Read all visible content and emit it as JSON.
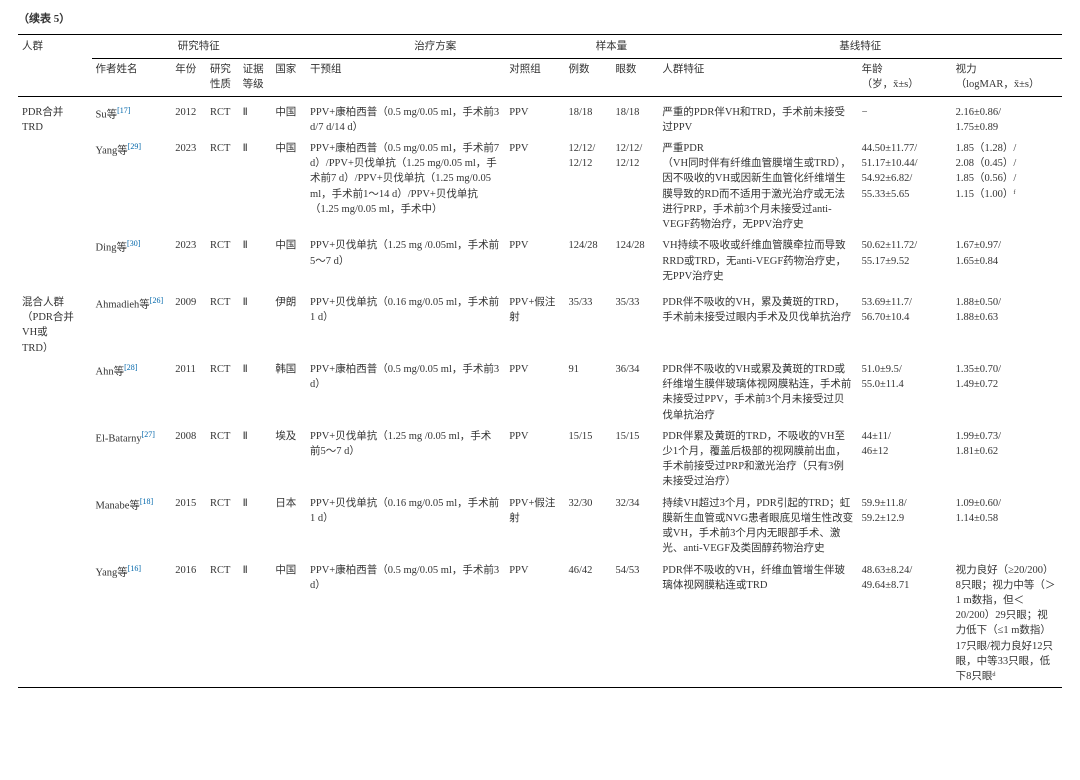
{
  "title": "（续表 5）",
  "groupHeaders": {
    "g1": "研究特征",
    "g2": "治疗方案",
    "g3": "样本量",
    "g4": "基线特征"
  },
  "columns": {
    "population": "人群",
    "author": "作者姓名",
    "year": "年份",
    "studyType": "研究\n性质",
    "evidenceLevel": "证据\n等级",
    "country": "国家",
    "intervention": "干预组",
    "control": "对照组",
    "cases": "例数",
    "eyes": "眼数",
    "popChar": "人群特征",
    "age": "年龄\n（岁，x̄±s）",
    "va": "视力\n（logMAR，x̄±s）"
  },
  "rows": [
    {
      "population": "PDR合并\nTRD",
      "author": "Su等",
      "ref": "[17]",
      "year": "2012",
      "type": "RCT",
      "level": "Ⅱ",
      "country": "中国",
      "interv": "PPV+康柏西普（0.5 mg/0.05 ml，手术前3 d/7 d/14 d）",
      "control": "PPV",
      "cases": "18/18",
      "eyes": "18/18",
      "char": "严重的PDR伴VH和TRD，手术前未接受过PPV",
      "age": "−",
      "va": "2.16±0.86/\n1.75±0.89"
    },
    {
      "population": "",
      "author": "Yang等",
      "ref": "[29]",
      "year": "2023",
      "type": "RCT",
      "level": "Ⅱ",
      "country": "中国",
      "interv": "PPV+康柏西普（0.5 mg/0.05 ml，手术前7 d）/PPV+贝伐单抗（1.25 mg/0.05 ml，手术前7 d）/PPV+贝伐单抗（1.25 mg/0.05 ml，手术前1～14 d）/PPV+贝伐单抗（1.25 mg/0.05 ml，手术中）",
      "control": "PPV",
      "cases": "12/12/\n12/12",
      "eyes": "12/12/\n12/12",
      "char": "严重PDR\n（VH同时伴有纤维血管膜增生或TRD），因不吸收的VH或因新生血管化纤维增生膜导致的RD而不适用于激光治疗或无法进行PRP，手术前3个月未接受过anti-VEGF药物治疗，无PPV治疗史",
      "age": "44.50±11.77/\n51.17±10.44/\n54.92±6.82/\n55.33±5.65",
      "va": "1.85（1.28）/\n2.08（0.45）/\n1.85（0.56）/\n1.15（1.00）ᶠ"
    },
    {
      "population": "",
      "author": "Ding等",
      "ref": "[30]",
      "year": "2023",
      "type": "RCT",
      "level": "Ⅱ",
      "country": "中国",
      "interv": "PPV+贝伐单抗（1.25 mg /0.05ml，手术前5～7 d）",
      "control": "PPV",
      "cases": "124/28",
      "eyes": "124/28",
      "char": "VH持续不吸收或纤维血管膜牵拉而导致RRD或TRD，无anti-VEGF药物治疗史，无PPV治疗史",
      "age": "50.62±11.72/\n55.17±9.52",
      "va": "1.67±0.97/\n1.65±0.84"
    },
    {
      "population": "混合人群\n（PDR合并\nVH或\nTRD）",
      "author": "Ahmadieh等",
      "ref": "[26]",
      "year": "2009",
      "type": "RCT",
      "level": "Ⅱ",
      "country": "伊朗",
      "interv": "PPV+贝伐单抗（0.16 mg/0.05 ml，手术前1 d）",
      "control": "PPV+假注射",
      "cases": "35/33",
      "eyes": "35/33",
      "char": "PDR伴不吸收的VH，累及黄斑的TRD，手术前未接受过眼内手术及贝伐单抗治疗",
      "age": "53.69±11.7/\n56.70±10.4",
      "va": "1.88±0.50/\n1.88±0.63"
    },
    {
      "population": "",
      "author": "Ahn等",
      "ref": "[28]",
      "year": "2011",
      "type": "RCT",
      "level": "Ⅱ",
      "country": "韩国",
      "interv": "PPV+康柏西普（0.5 mg/0.05 ml，手术前3 d）",
      "control": "PPV",
      "cases": "91",
      "eyes": "36/34",
      "char": "PDR伴不吸收的VH或累及黄斑的TRD或纤维增生膜伴玻璃体视网膜粘连，手术前未接受过PPV，手术前3个月未接受过贝伐单抗治疗",
      "age": "51.0±9.5/\n55.0±11.4",
      "va": "1.35±0.70/\n1.49±0.72"
    },
    {
      "population": "",
      "author": "El-Batarny",
      "ref": "[27]",
      "year": "2008",
      "type": "RCT",
      "level": "Ⅱ",
      "country": "埃及",
      "interv": "PPV+贝伐单抗（1.25 mg /0.05 ml，手术前5～7 d）",
      "control": "PPV",
      "cases": "15/15",
      "eyes": "15/15",
      "char": "PDR伴累及黄斑的TRD，不吸收的VH至少1个月，覆盖后极部的视网膜前出血，手术前接受过PRP和激光治疗（只有3例未接受过治疗）",
      "age": "44±11/\n46±12",
      "va": "1.99±0.73/\n1.81±0.62"
    },
    {
      "population": "",
      "author": "Manabe等",
      "ref": "[18]",
      "year": "2015",
      "type": "RCT",
      "level": "Ⅱ",
      "country": "日本",
      "interv": "PPV+贝伐单抗（0.16 mg/0.05 ml，手术前1 d）",
      "control": "PPV+假注射",
      "cases": "32/30",
      "eyes": "32/34",
      "char": "持续VH超过3个月，PDR引起的TRD；虹膜新生血管或NVG患者眼底见增生性改变或VH，手术前3个月内无眼部手术、激光、anti-VEGF及类固醇药物治疗史",
      "age": "59.9±11.8/\n59.2±12.9",
      "va": "1.09±0.60/\n1.14±0.58"
    },
    {
      "population": "",
      "author": "Yang等",
      "ref": "[16]",
      "year": "2016",
      "type": "RCT",
      "level": "Ⅱ",
      "country": "中国",
      "interv": "PPV+康柏西普（0.5 mg/0.05 ml，手术前3 d）",
      "control": "PPV",
      "cases": "46/42",
      "eyes": "54/53",
      "char": "PDR伴不吸收的VH，纤维血管增生伴玻璃体视网膜粘连或TRD",
      "age": "48.63±8.24/\n49.64±8.71",
      "va": "视力良好（≥20/200）8只眼；视力中等（＞1 m数指，但＜20/200）29只眼；视力低下（≤1 m数指）17只眼/视力良好12只眼，中等33只眼，低下8只眼ᵈ"
    }
  ]
}
